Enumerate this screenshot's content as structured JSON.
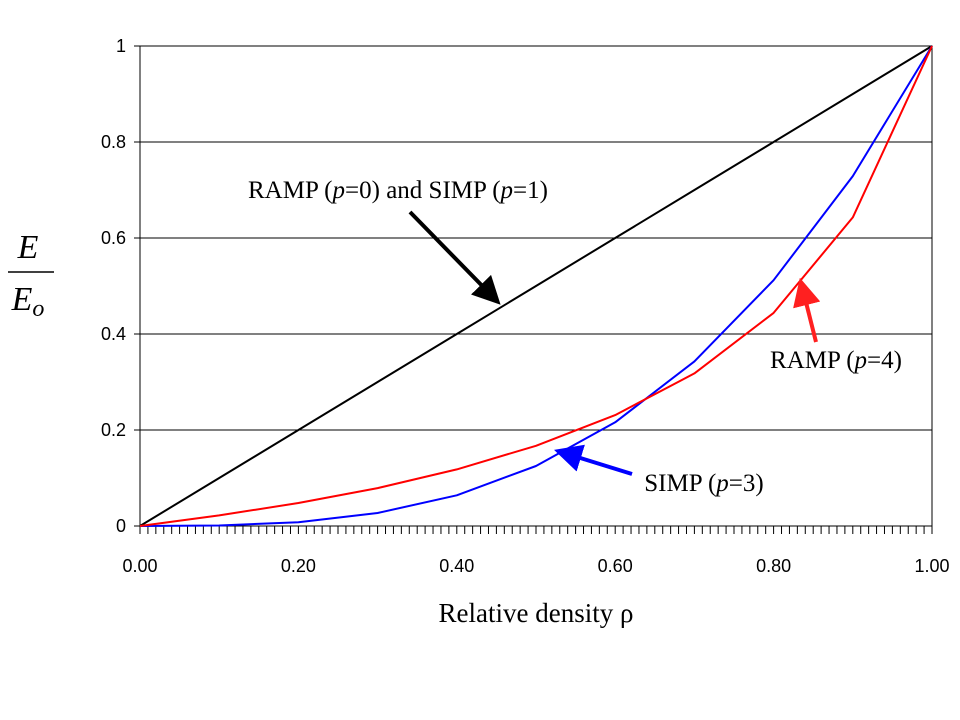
{
  "chart_data": {
    "type": "line",
    "title": "",
    "xlabel": "Relative density ρ",
    "ylabel": {
      "numerator": "E",
      "denominator": "E",
      "denominator_subscript": "o"
    },
    "xlim": [
      0,
      1
    ],
    "ylim": [
      0,
      1
    ],
    "xticks": [
      0.0,
      0.2,
      0.4,
      0.6,
      0.8,
      1.0
    ],
    "xtick_labels": [
      "0.00",
      "0.20",
      "0.40",
      "0.60",
      "0.80",
      "1.00"
    ],
    "yticks": [
      0,
      0.2,
      0.4,
      0.6,
      0.8,
      1
    ],
    "ytick_labels": [
      "0",
      "0.2",
      "0.4",
      "0.6",
      "0.8",
      "1"
    ],
    "grid": "horizontal",
    "legend": "none",
    "series": [
      {
        "name": "RAMP (p=0) and SIMP (p=1)",
        "color": "#000000",
        "x": [
          0,
          0.1,
          0.2,
          0.3,
          0.4,
          0.5,
          0.6,
          0.7,
          0.8,
          0.9,
          1.0
        ],
        "y": [
          0,
          0.1,
          0.2,
          0.3,
          0.4,
          0.5,
          0.6,
          0.7,
          0.8,
          0.9,
          1.0
        ]
      },
      {
        "name": "SIMP (p=3)",
        "color": "#0000ff",
        "x": [
          0,
          0.1,
          0.2,
          0.3,
          0.4,
          0.5,
          0.6,
          0.7,
          0.8,
          0.9,
          1.0
        ],
        "y": [
          0,
          0.001,
          0.008,
          0.027,
          0.064,
          0.125,
          0.216,
          0.343,
          0.512,
          0.729,
          1.0
        ]
      },
      {
        "name": "RAMP (p=4)",
        "color": "#ff0000",
        "x": [
          0,
          0.1,
          0.2,
          0.3,
          0.4,
          0.5,
          0.6,
          0.7,
          0.8,
          0.9,
          1.0
        ],
        "y": [
          0,
          0.022,
          0.048,
          0.079,
          0.118,
          0.167,
          0.231,
          0.318,
          0.444,
          0.643,
          1.0
        ]
      }
    ],
    "annotations": [
      {
        "id": "linear",
        "parts": [
          [
            "RAMP (",
            false
          ],
          [
            "p",
            true
          ],
          [
            "=0) and SIMP (",
            false
          ],
          [
            "p",
            true
          ],
          [
            "=1)",
            false
          ]
        ],
        "color": "#000000",
        "arrow_to": [
          0.45,
          0.47
        ]
      },
      {
        "id": "ramp4",
        "parts": [
          [
            "RAMP (",
            false
          ],
          [
            "p",
            true
          ],
          [
            "=4)",
            false
          ]
        ],
        "color": "#ff2020",
        "arrow_to": [
          0.835,
          0.505
        ]
      },
      {
        "id": "simp3",
        "parts": [
          [
            "SIMP (",
            false
          ],
          [
            "p",
            true
          ],
          [
            "=3)",
            false
          ]
        ],
        "color": "#0000ff",
        "arrow_to": [
          0.53,
          0.155
        ]
      }
    ]
  }
}
